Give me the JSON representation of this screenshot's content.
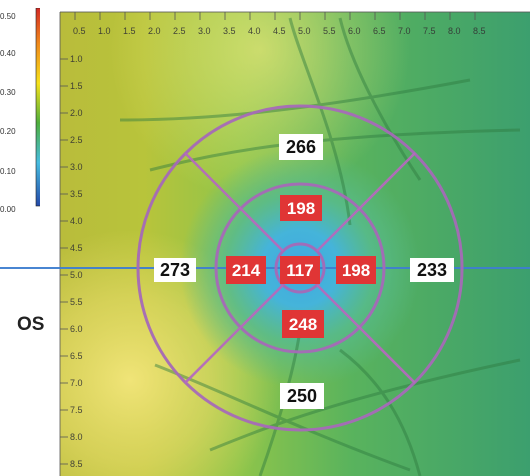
{
  "colors": {
    "ring": "#a66ab8",
    "center_ring": "#9b5ac8",
    "scan_line": "#3f7fd0",
    "label_bg_outer": "#ffffff",
    "label_bg_inner": "#e03535",
    "label_text_outer": "#111111",
    "label_text_inner": "#ffffff"
  },
  "colorbar": {
    "ticks": [
      "0.50",
      "0.40",
      "0.30",
      "0.20",
      "0.10",
      "0.00"
    ],
    "colors": [
      "#d32a24",
      "#f08a1c",
      "#f6e21c",
      "#4fae3c",
      "#48bde0",
      "#2449a8"
    ]
  },
  "eye": {
    "label": "OS"
  },
  "ruler": {
    "top_ticks": [
      "0.5",
      "1.0",
      "1.5",
      "2.0",
      "2.5",
      "3.0",
      "3.5",
      "4.0",
      "4.5",
      "5.0",
      "5.5",
      "6.0",
      "6.5",
      "7.0",
      "7.5",
      "8.0",
      "8.5"
    ],
    "left_ticks": [
      "1.0",
      "1.5",
      "2.0",
      "2.5",
      "3.0",
      "3.5",
      "4.0",
      "4.5",
      "5.0",
      "5.5",
      "6.0",
      "6.5",
      "7.0",
      "7.5",
      "8.0",
      "8.5"
    ]
  },
  "thickness_map": {
    "outer": {
      "superior": "266",
      "nasal": "273",
      "temporal": "233",
      "inferior": "250"
    },
    "inner": {
      "superior": "198",
      "nasal": "214",
      "temporal": "198",
      "inferior": "248"
    },
    "center": "117"
  }
}
